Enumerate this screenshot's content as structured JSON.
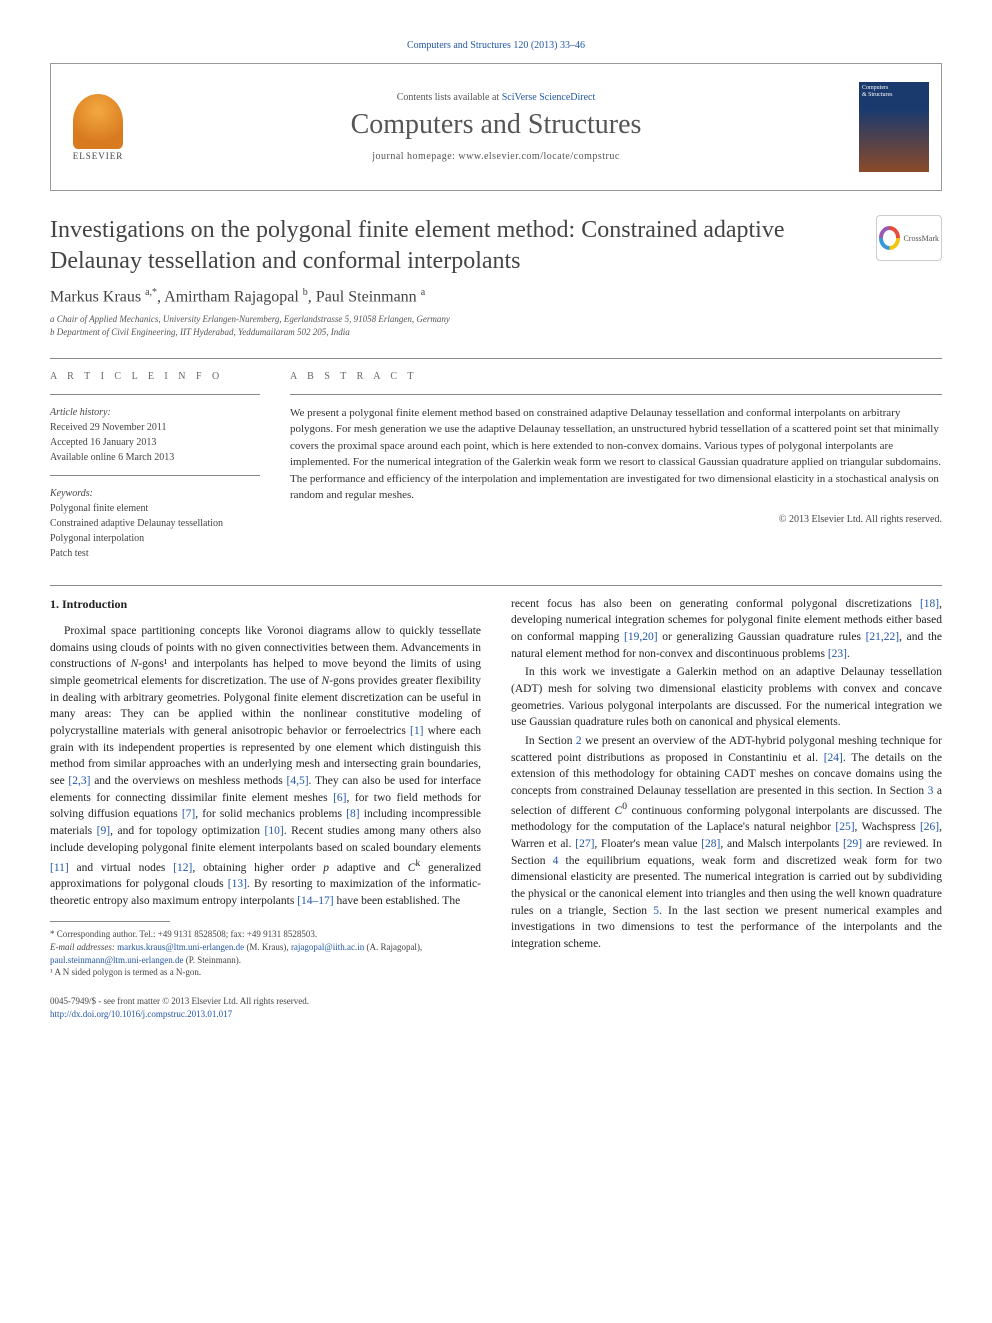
{
  "top_link": "Computers and Structures 120 (2013) 33–46",
  "header": {
    "contents_prefix": "Contents lists available at ",
    "contents_link": "SciVerse ScienceDirect",
    "journal_title": "Computers and Structures",
    "homepage_prefix": "journal homepage: ",
    "homepage": "www.elsevier.com/locate/compstruc",
    "elsevier": "ELSEVIER",
    "cover_line1": "Computers",
    "cover_line2": "& Structures"
  },
  "crossmark": "CrossMark",
  "article": {
    "title": "Investigations on the polygonal finite element method: Constrained adaptive Delaunay tessellation and conformal interpolants",
    "authors_html": "Markus Kraus <sup>a,*</sup>, Amirtham Rajagopal <sup>b</sup>, Paul Steinmann <sup>a</sup>",
    "affiliations": [
      "a Chair of Applied Mechanics, University Erlangen-Nuremberg, Egerlandstrasse 5, 91058 Erlangen, Germany",
      "b Department of Civil Engineering, IIT Hyderabad, Yeddumailaram 502 205, India"
    ]
  },
  "info": {
    "heading": "A R T I C L E   I N F O",
    "history_label": "Article history:",
    "received": "Received 29 November 2011",
    "accepted": "Accepted 16 January 2013",
    "online": "Available online 6 March 2013",
    "keywords_label": "Keywords:",
    "keywords": [
      "Polygonal finite element",
      "Constrained adaptive Delaunay tessellation",
      "Polygonal interpolation",
      "Patch test"
    ]
  },
  "abstract": {
    "heading": "A B S T R A C T",
    "text": "We present a polygonal finite element method based on constrained adaptive Delaunay tessellation and conformal interpolants on arbitrary polygons. For mesh generation we use the adaptive Delaunay tessellation, an unstructured hybrid tessellation of a scattered point set that minimally covers the proximal space around each point, which is here extended to non-convex domains. Various types of polygonal interpolants are implemented. For the numerical integration of the Galerkin weak form we resort to classical Gaussian quadrature applied on triangular subdomains. The performance and efficiency of the interpolation and implementation are investigated for two dimensional elasticity in a stochastical analysis on random and regular meshes.",
    "copyright": "© 2013 Elsevier Ltd. All rights reserved."
  },
  "body": {
    "section1_heading": "1. Introduction",
    "col1_para1": "Proximal space partitioning concepts like Voronoi diagrams allow to quickly tessellate domains using clouds of points with no given connectivities between them. Advancements in constructions of N-gons¹ and interpolants has helped to move beyond the limits of using simple geometrical elements for discretization. The use of N-gons provides greater flexibility in dealing with arbitrary geometries. Polygonal finite element discretization can be useful in many areas: They can be applied within the nonlinear constitutive modeling of polycrystalline materials with general anisotropic behavior or ferroelectrics [1] where each grain with its independent properties is represented by one element which distinguish this method from similar approaches with an underlying mesh and intersecting grain boundaries, see [2,3] and the overviews on meshless methods [4,5]. They can also be used for interface elements for connecting dissimilar finite element meshes [6], for two field methods for solving diffusion equations [7], for solid mechanics problems [8] including incompressible materials [9], and for topology optimization [10]. Recent studies among many others also include developing polygonal finite element interpolants based on scaled boundary elements [11] and virtual nodes [12], obtaining higher order p adaptive and Cᵏ generalized approximations for polygonal clouds [13]. By resorting to maximization of the informatic-theoretic entropy also maximum entropy interpolants [14–17] have been established. The",
    "col2_para1": "recent focus has also been on generating conformal polygonal discretizations [18], developing numerical integration schemes for polygonal finite element methods either based on conformal mapping [19,20] or generalizing Gaussian quadrature rules [21,22], and the natural element method for non-convex and discontinuous problems [23].",
    "col2_para2": "In this work we investigate a Galerkin method on an adaptive Delaunay tessellation (ADT) mesh for solving two dimensional elasticity problems with convex and concave geometries. Various polygonal interpolants are discussed. For the numerical integration we use Gaussian quadrature rules both on canonical and physical elements.",
    "col2_para3": "In Section 2 we present an overview of the ADT-hybrid polygonal meshing technique for scattered point distributions as proposed in Constantiniu et al. [24]. The details on the extension of this methodology for obtaining CADT meshes on concave domains using the concepts from constrained Delaunay tessellation are presented in this section. In Section 3 a selection of different C⁰ continuous conforming polygonal interpolants are discussed. The methodology for the computation of the Laplace's natural neighbor [25], Wachspress [26], Warren et al. [27], Floater's mean value [28], and Malsch interpolants [29] are reviewed. In Section 4 the equilibrium equations, weak form and discretized weak form for two dimensional elasticity are presented. The numerical integration is carried out by subdividing the physical or the canonical element into triangles and then using the well known quadrature rules on a triangle, Section 5. In the last section we present numerical examples and investigations in two dimensions to test the performance of the interpolants and the integration scheme."
  },
  "footnotes": {
    "corr_label": "* Corresponding author. Tel.: +49 9131 8528508; fax: +49 9131 8528503.",
    "email_label": "E-mail addresses: ",
    "emails": [
      {
        "addr": "markus.kraus@ltm.uni-erlangen.de",
        "name": " (M. Kraus), "
      },
      {
        "addr": "rajagopal@iith.ac.in",
        "name": " (A. Rajagopal), "
      },
      {
        "addr": "paul.steinmann@ltm.uni-erlangen.de",
        "name": " (P. Steinmann)."
      }
    ],
    "note1": "¹ A N sided polygon is termed as a N-gon."
  },
  "bottom": {
    "line1": "0045-7949/$ - see front matter © 2013 Elsevier Ltd. All rights reserved.",
    "doi": "http://dx.doi.org/10.1016/j.compstruc.2013.01.017"
  },
  "colors": {
    "link": "#2156a5",
    "text": "#333333",
    "heading": "#555555",
    "rule": "#888888"
  }
}
